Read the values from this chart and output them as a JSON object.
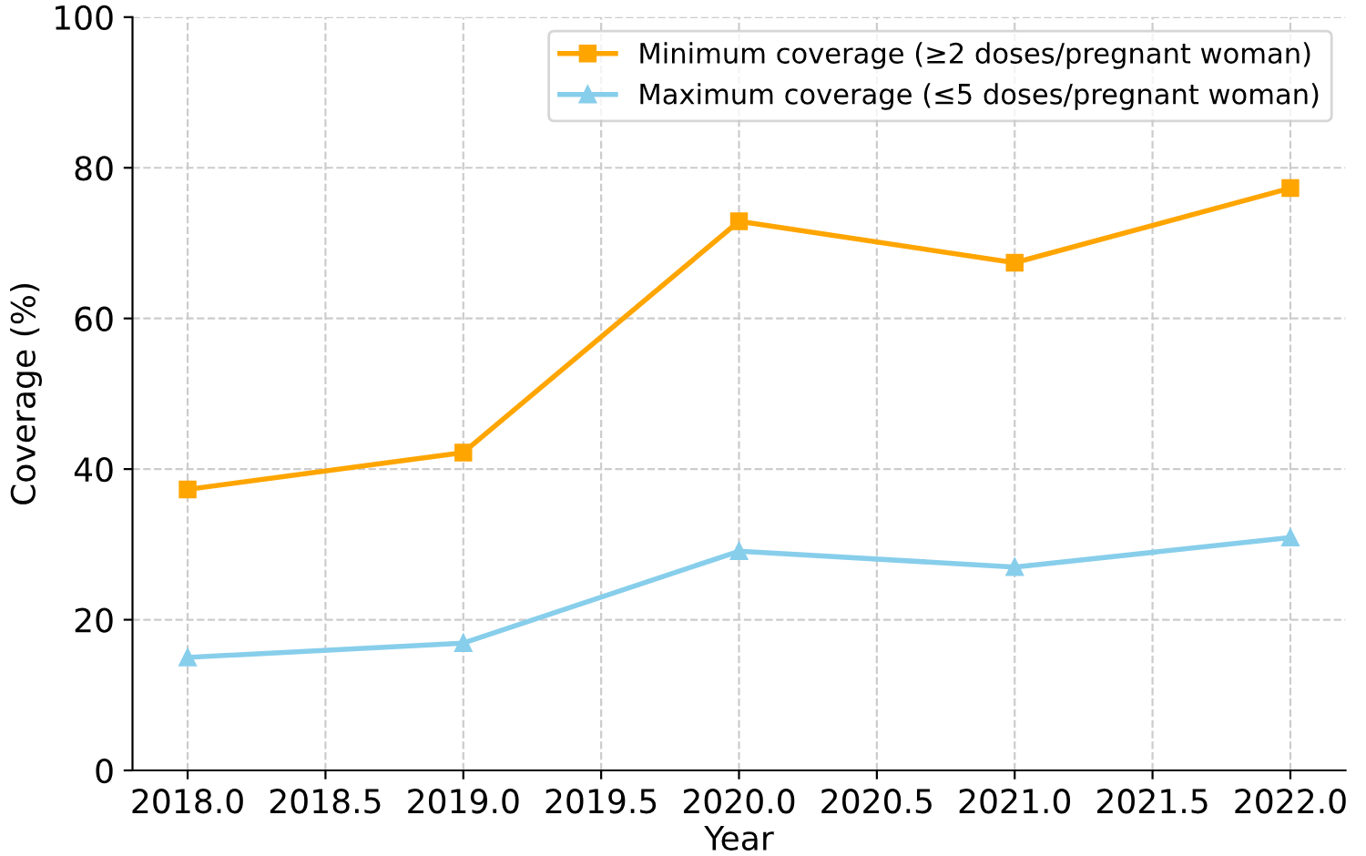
{
  "chart_data": {
    "type": "line",
    "xlabel": "Year",
    "ylabel": "Coverage (%)",
    "x": [
      2018,
      2019,
      2020,
      2021,
      2022
    ],
    "series": [
      {
        "name": "Minimum coverage (≥2 doses/pregnant woman)",
        "color": "#ffa500",
        "marker": "square",
        "values": [
          37.3,
          42.2,
          72.9,
          67.4,
          77.3
        ]
      },
      {
        "name": "Maximum coverage (≤5 doses/pregnant woman)",
        "color": "#87ceeb",
        "marker": "triangle",
        "values": [
          15.0,
          16.9,
          29.1,
          27.0,
          30.9
        ]
      }
    ],
    "xlim": [
      2017.8,
      2022.2
    ],
    "xticks": [
      {
        "value": 2018,
        "label": "2018.0"
      },
      {
        "value": 2018.5,
        "label": "2018.5"
      },
      {
        "value": 2019,
        "label": "2019.0"
      },
      {
        "value": 2019.5,
        "label": "2019.5"
      },
      {
        "value": 2020,
        "label": "2020.0"
      },
      {
        "value": 2020.5,
        "label": "2020.5"
      },
      {
        "value": 2021,
        "label": "2021.0"
      },
      {
        "value": 2021.5,
        "label": "2021.5"
      },
      {
        "value": 2022,
        "label": "2022.0"
      }
    ],
    "ylim": [
      0,
      100
    ],
    "yticks": [
      0,
      20,
      40,
      60,
      80,
      100
    ],
    "grid": true,
    "legend": "top right",
    "line_style": "solid"
  }
}
